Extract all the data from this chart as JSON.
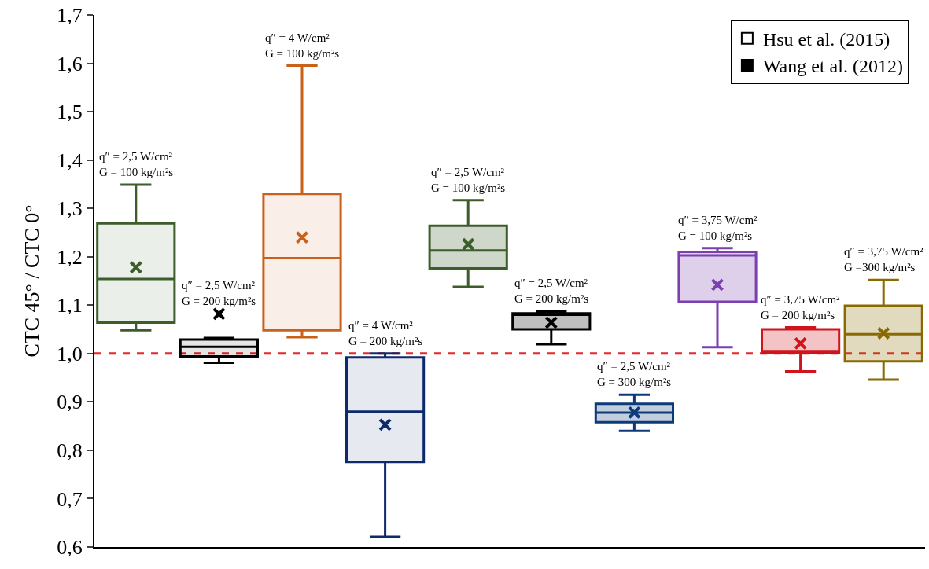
{
  "chart_data": {
    "type": "box",
    "categories": [
      null,
      null,
      null,
      null,
      null,
      null,
      null,
      null,
      null,
      null
    ],
    "ylabel": "CTC 45° / CTC 0°",
    "ylim": [
      0.6,
      1.7
    ],
    "yticks": [
      {
        "value": 0.6,
        "label": "0,6"
      },
      {
        "value": 0.7,
        "label": "0,7"
      },
      {
        "value": 0.8,
        "label": "0,8"
      },
      {
        "value": 0.9,
        "label": "0,9"
      },
      {
        "value": 1.0,
        "label": "1,0"
      },
      {
        "value": 1.1,
        "label": "1,1"
      },
      {
        "value": 1.2,
        "label": "1,2"
      },
      {
        "value": 1.3,
        "label": "1,3"
      },
      {
        "value": 1.4,
        "label": "1,4"
      },
      {
        "value": 1.5,
        "label": "1,5"
      },
      {
        "value": 1.6,
        "label": "1,6"
      },
      {
        "value": 1.7,
        "label": "1,7"
      }
    ],
    "tick_labels": "y",
    "grid": false,
    "legend": "top right",
    "ref_lines": [
      {
        "axis": "y",
        "value": 1.0,
        "color": "#e8262a",
        "line_style": "dashed"
      }
    ],
    "series": [
      {
        "name": "Hsu et al. (2015)",
        "colors": [
          "#3d5e2a",
          "#000000",
          "#c8611a",
          "#0d2b6b",
          null,
          null,
          null,
          null,
          null,
          null
        ],
        "boxes": [
          {
            "low": 1.048,
            "q1": 1.064,
            "median": 1.154,
            "q3": 1.269,
            "high": 1.349,
            "mean": 1.178
          },
          {
            "low": 0.981,
            "q1": 0.994,
            "median": 1.014,
            "q3": 1.029,
            "high": 1.032,
            "mean": 1.082
          },
          {
            "low": 1.034,
            "q1": 1.048,
            "median": 1.197,
            "q3": 1.33,
            "high": 1.595,
            "mean": 1.24
          },
          {
            "low": 0.621,
            "q1": 0.776,
            "median": 0.88,
            "q3": 0.992,
            "high": 1.0,
            "mean": 0.853
          },
          null,
          null,
          null,
          null,
          null,
          null
        ]
      },
      {
        "name": "Wang et al. (2012)",
        "color": "#000000",
        "colors": [
          null,
          null,
          null,
          null,
          "#3d5e2a",
          "#000000",
          "#0d3b7a",
          "#7b3fb0",
          "#d0141c",
          "#8a6a00"
        ],
        "boxes": [
          null,
          null,
          null,
          null,
          {
            "low": 1.138,
            "q1": 1.176,
            "median": 1.213,
            "q3": 1.264,
            "high": 1.317,
            "mean": 1.226
          },
          {
            "low": 1.019,
            "q1": 1.05,
            "median": 1.08,
            "q3": 1.083,
            "high": 1.088,
            "mean": 1.064
          },
          {
            "low": 0.84,
            "q1": 0.858,
            "median": 0.878,
            "q3": 0.896,
            "high": 0.915,
            "mean": 0.878
          },
          {
            "low": 1.013,
            "q1": 1.107,
            "median": 1.203,
            "q3": 1.21,
            "high": 1.218,
            "mean": 1.142
          },
          {
            "low": 0.963,
            "q1": 1.002,
            "median": 1.005,
            "q3": 1.05,
            "high": 1.054,
            "mean": 1.021
          },
          {
            "low": 0.946,
            "q1": 0.984,
            "median": 1.04,
            "q3": 1.099,
            "high": 1.152,
            "mean": 1.042
          }
        ]
      }
    ],
    "annotations": [
      "q″ = 2,5 W/cm²\nG = 100 kg/m²s",
      "q″ = 2,5 W/cm²\nG = 200 kg/m²s",
      "q″ = 4 W/cm²\nG = 100 kg/m²s",
      "q″ = 4 W/cm²\nG = 200 kg/m²s",
      "q″ = 2,5 W/cm²\nG = 100 kg/m²s",
      "q″ = 2,5 W/cm²\nG = 200 kg/m²s",
      "q″ = 2,5 W/cm²\nG = 300 kg/m²s",
      "q″ = 3,75 W/cm²\nG = 100 kg/m²s",
      "q″ = 3,75 W/cm²\nG = 200 kg/m²s",
      "q″ = 3,75 W/cm²\nG =300 kg/m²s"
    ]
  }
}
